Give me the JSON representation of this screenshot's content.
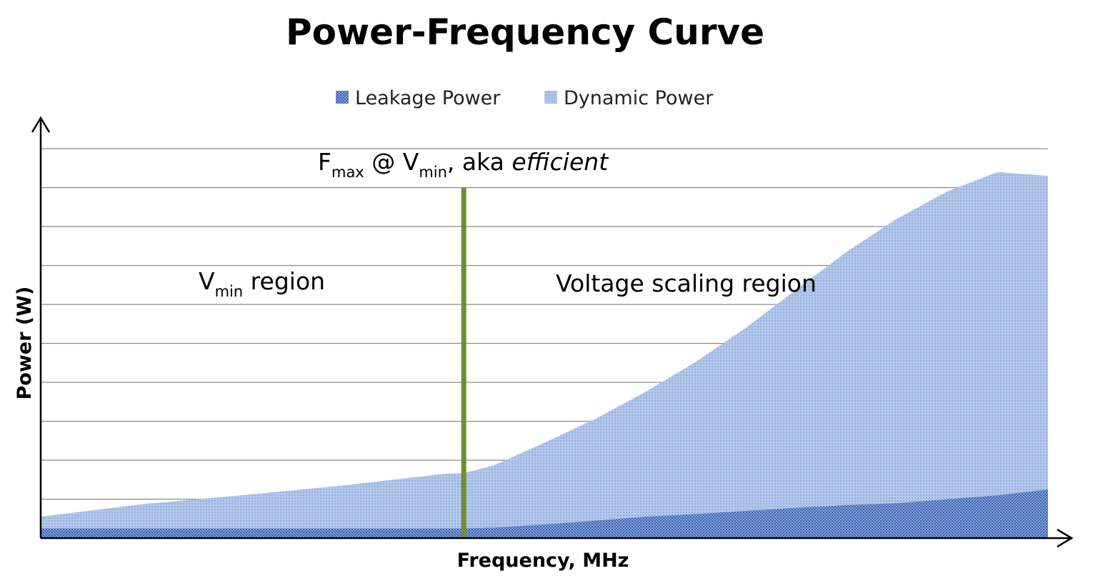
{
  "chart_data": {
    "type": "area",
    "title": "Power-Frequency Curve",
    "xlabel": "Frequency, MHz",
    "ylabel": "Power (W)",
    "x": [
      0,
      0.1,
      0.2,
      0.3,
      0.4,
      0.42,
      0.45,
      0.5,
      0.55,
      0.6,
      0.65,
      0.7,
      0.75,
      0.8,
      0.85,
      0.9,
      0.95,
      1.0
    ],
    "xlim": [
      0,
      1
    ],
    "ylim": [
      0,
      10
    ],
    "stacked": true,
    "grid": "horizontal",
    "legend_position": "top-center",
    "series": [
      {
        "name": "Leakage Power",
        "values": [
          0.25,
          0.25,
          0.25,
          0.25,
          0.25,
          0.25,
          0.27,
          0.35,
          0.45,
          0.55,
          0.62,
          0.7,
          0.78,
          0.85,
          0.9,
          1.0,
          1.1,
          1.25
        ],
        "color": "#5b7fc4",
        "pattern": "dense-dots"
      },
      {
        "name": "Dynamic Power",
        "values": [
          0.3,
          0.62,
          0.85,
          1.1,
          1.4,
          1.42,
          1.6,
          2.1,
          2.6,
          3.2,
          3.9,
          4.7,
          5.6,
          6.5,
          7.3,
          7.9,
          8.3,
          8.05
        ],
        "color": "#a8bfe6",
        "pattern": "light-dots"
      }
    ],
    "marker_line": {
      "x": 0.42,
      "label_main_1": "F",
      "label_sub_1": "max",
      "label_main_2": " @ V",
      "label_sub_2": "min",
      "label_main_3": ", aka ",
      "label_italic": "efficient",
      "color": "#6f8f2e"
    },
    "regions": [
      {
        "main": "V",
        "sub": "min",
        "rest": " region"
      },
      {
        "main": "Voltage scaling region",
        "sub": "",
        "rest": ""
      }
    ]
  }
}
